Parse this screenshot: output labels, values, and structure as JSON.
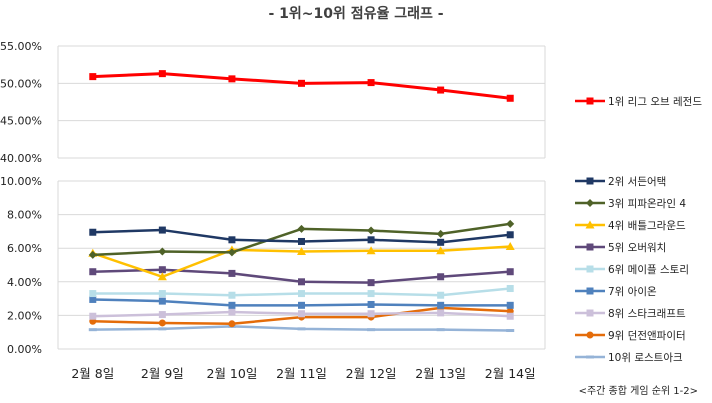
{
  "title": "- 1위~10위 점유율 그래프 -",
  "footnote": "<주간 종합 게임 순위 1-2>",
  "chart_data": {
    "type": "line",
    "title": "- 1위~10위 점유율 그래프 -",
    "xlabel": "",
    "ylabel": "",
    "categories": [
      "2월 8일",
      "2월 9일",
      "2월 10일",
      "2월 11일",
      "2월 12일",
      "2월 13일",
      "2월 14일"
    ],
    "upper_panel": {
      "ylim": [
        40,
        55
      ],
      "yticks": [
        "55.00%",
        "50.00%",
        "45.00%",
        "40.00%"
      ],
      "series": [
        {
          "name": "1위 리그 오브 레전드",
          "color": "#ff0000",
          "values": [
            50.9,
            51.3,
            50.6,
            50.0,
            50.1,
            49.1,
            48.0
          ]
        }
      ]
    },
    "lower_panel": {
      "ylim": [
        0,
        10
      ],
      "yticks": [
        "10.00%",
        "8.00%",
        "6.00%",
        "4.00%",
        "2.00%",
        "0.00%"
      ],
      "series": [
        {
          "name": "2위 서든어택",
          "color": "#1f3864",
          "values": [
            6.95,
            7.08,
            6.5,
            6.4,
            6.5,
            6.35,
            6.8
          ]
        },
        {
          "name": "3위 피파온라인 4",
          "color": "#4f6228",
          "values": [
            5.6,
            5.8,
            5.75,
            7.15,
            7.05,
            6.85,
            7.45
          ]
        },
        {
          "name": "4위 배틀그라운드",
          "color": "#ffc000",
          "values": [
            5.7,
            4.3,
            5.9,
            5.8,
            5.85,
            5.85,
            6.1
          ]
        },
        {
          "name": "5위 오버워치",
          "color": "#5f497a",
          "values": [
            4.6,
            4.72,
            4.5,
            4.0,
            3.95,
            4.3,
            4.6
          ]
        },
        {
          "name": "6위 메이플 스토리",
          "color": "#b7dee8",
          "values": [
            3.3,
            3.3,
            3.2,
            3.3,
            3.3,
            3.2,
            3.6
          ]
        },
        {
          "name": "7위 아이온",
          "color": "#4f81bd",
          "values": [
            2.95,
            2.85,
            2.6,
            2.6,
            2.65,
            2.6,
            2.6
          ]
        },
        {
          "name": "8위 스타크래프트",
          "color": "#ccc0da",
          "values": [
            1.95,
            2.05,
            2.2,
            2.1,
            2.1,
            2.15,
            1.95
          ]
        },
        {
          "name": "9위 던전앤파이터",
          "color": "#e46c0a",
          "values": [
            1.65,
            1.55,
            1.5,
            1.9,
            1.9,
            2.45,
            2.25
          ]
        },
        {
          "name": "10위 로스트아크",
          "color": "#95b3d7",
          "values": [
            1.15,
            1.2,
            1.35,
            1.2,
            1.15,
            1.15,
            1.1
          ]
        }
      ]
    },
    "grid": true,
    "legend": "right"
  }
}
